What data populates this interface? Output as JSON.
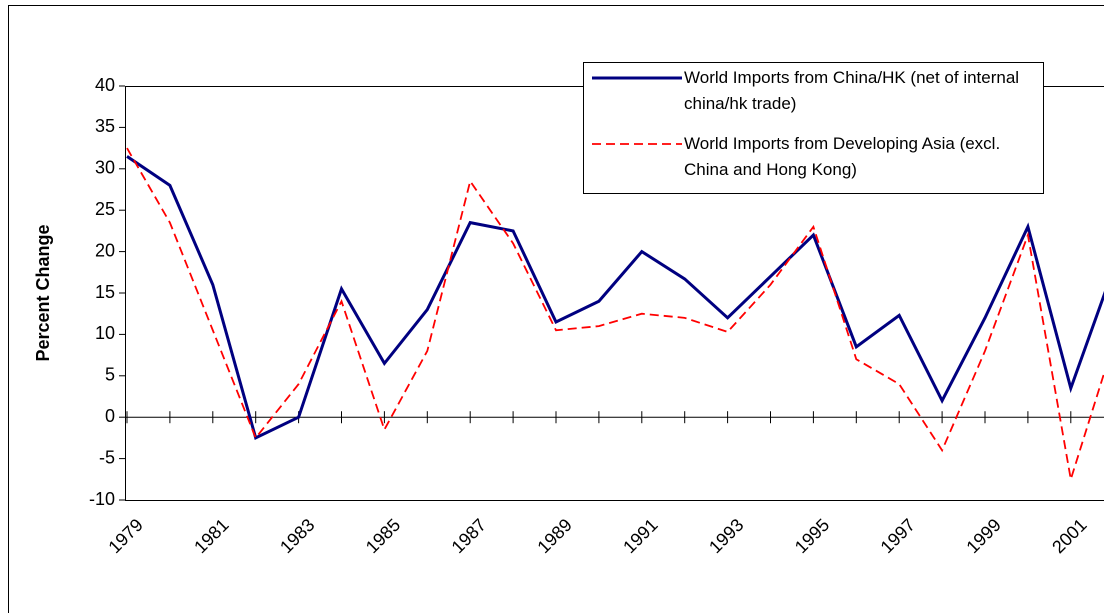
{
  "chart_data": {
    "type": "line",
    "ylabel": "Percent Change",
    "categories": [
      "1979",
      null,
      "1981",
      null,
      "1983",
      null,
      "1985",
      null,
      "1987",
      null,
      "1989",
      null,
      "1991",
      null,
      "1993",
      null,
      "1995",
      null,
      "1997",
      null,
      "1999",
      null,
      "2001",
      null
    ],
    "series": [
      {
        "name": "World Imports from China/HK (net of internal china/hk trade)",
        "color": "#000080",
        "dash": false,
        "values": [
          31.5,
          28,
          16,
          -2.5,
          0,
          15.5,
          6.5,
          13,
          23.5,
          22.5,
          11.5,
          14,
          20,
          16.7,
          12,
          17,
          22,
          8.5,
          12.3,
          2,
          12,
          23,
          3.5,
          18
        ]
      },
      {
        "name": "World Imports from Developing Asia (excl. China and Hong Kong)",
        "color": "#ff0000",
        "dash": true,
        "values": [
          32.5,
          23.5,
          10.5,
          -2.5,
          4,
          14,
          -1.5,
          8,
          28.5,
          21,
          10.5,
          11,
          12.5,
          12,
          10.3,
          16,
          23,
          7,
          4,
          -4,
          8,
          22,
          -7.5,
          9
        ]
      }
    ],
    "ylim": [
      -10,
      40
    ],
    "yticks": [
      -10,
      -5,
      0,
      5,
      10,
      15,
      20,
      25,
      30,
      35,
      40
    ]
  }
}
